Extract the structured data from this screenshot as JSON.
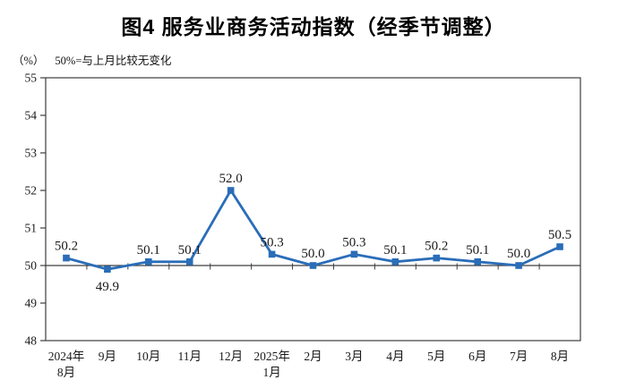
{
  "chart_data": {
    "type": "line",
    "title": "图4 服务业商务活动指数（经季节调整）",
    "unit_label": "（%）",
    "note": "50%=与上月比较无变化",
    "categories": [
      "2024年\n8月",
      "9月",
      "10月",
      "11月",
      "12月",
      "2025年\n1月",
      "2月",
      "3月",
      "4月",
      "5月",
      "6月",
      "7月",
      "8月"
    ],
    "values": [
      50.2,
      49.9,
      50.1,
      50.1,
      52.0,
      50.3,
      50.0,
      50.3,
      50.1,
      50.2,
      50.1,
      50.0,
      50.5
    ],
    "labels": [
      "50.2",
      "49.9",
      "50.1",
      "50.1",
      "52.0",
      "50.3",
      "50.0",
      "50.3",
      "50.1",
      "50.2",
      "50.1",
      "50.0",
      "50.5"
    ],
    "label_positions": [
      "above",
      "below",
      "above",
      "above",
      "above",
      "above",
      "above",
      "above",
      "above",
      "above",
      "above",
      "above",
      "above"
    ],
    "ylim": [
      48,
      55
    ],
    "yticks": [
      48,
      49,
      50,
      51,
      52,
      53,
      54,
      55
    ],
    "reference_line": 50,
    "grid": false,
    "legend": "none",
    "marker": "square",
    "line_color": "#2a6db8",
    "axis_color": "#3d3d3d",
    "text_color": "#1a1a1a"
  }
}
